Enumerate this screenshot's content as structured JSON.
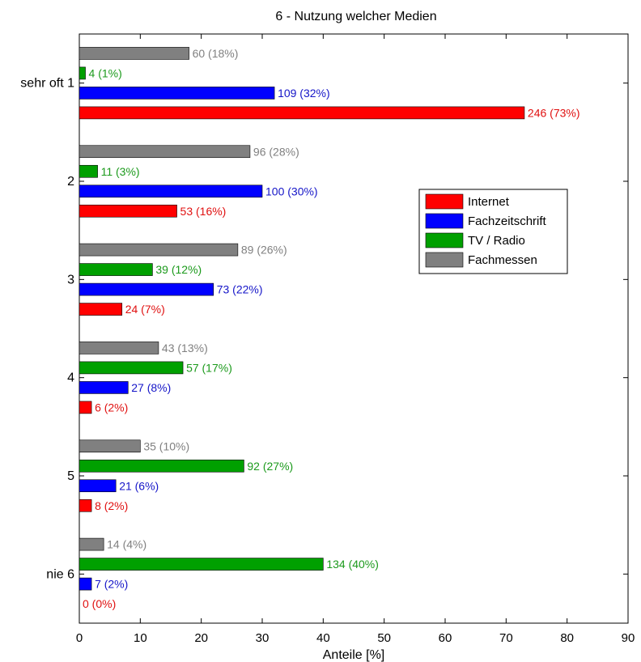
{
  "chart_data": {
    "type": "bar",
    "orientation": "horizontal",
    "title": "6 - Nutzung welcher Medien",
    "xlabel": "Anteile [%]",
    "ylabel": "",
    "xlim": [
      0,
      90
    ],
    "xticks": [
      "0",
      "10",
      "20",
      "30",
      "40",
      "50",
      "60",
      "70",
      "80",
      "90"
    ],
    "grid": false,
    "legend_position": "right",
    "categories": [
      "sehr oft 1",
      "2",
      "3",
      "4",
      "5",
      "nie 6"
    ],
    "series": [
      {
        "name": "Internet",
        "color": "#ff0000",
        "label_color": "#e01010",
        "values": [
          73,
          16,
          7,
          2,
          2,
          0
        ],
        "labels": [
          "246 (73%)",
          "53 (16%)",
          "24 (7%)",
          "6 (2%)",
          "8 (2%)",
          "0 (0%)"
        ]
      },
      {
        "name": "Fachzeitschrift",
        "color": "#0000ff",
        "label_color": "#1515c8",
        "values": [
          32,
          30,
          22,
          8,
          6,
          2
        ],
        "labels": [
          "109 (32%)",
          "100 (30%)",
          "73 (22%)",
          "27 (8%)",
          "21 (6%)",
          "7 (2%)"
        ]
      },
      {
        "name": "TV / Radio",
        "color": "#00a000",
        "label_color": "#1c9a1c",
        "values": [
          1,
          3,
          12,
          17,
          27,
          40
        ],
        "labels": [
          "4 (1%)",
          "11 (3%)",
          "39 (12%)",
          "57 (17%)",
          "92 (27%)",
          "134 (40%)"
        ]
      },
      {
        "name": "Fachmessen",
        "color": "#808080",
        "label_color": "#808080",
        "values": [
          18,
          28,
          26,
          13,
          10,
          4
        ],
        "labels": [
          "60 (18%)",
          "96 (28%)",
          "89 (26%)",
          "43 (13%)",
          "35 (10%)",
          "14 (4%)"
        ]
      }
    ]
  }
}
